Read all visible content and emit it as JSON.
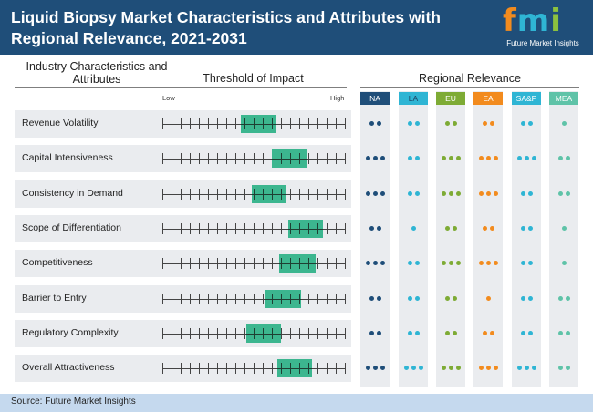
{
  "title": "Liquid Biopsy Market Characteristics and Attributes with Regional Relevance, 2021-2031",
  "logo": {
    "letters": [
      "f",
      "m",
      "i"
    ],
    "letter_colors": [
      "#f28b1e",
      "#2fb5d4",
      "#8cc13f"
    ],
    "subtitle": "Future Market Insights"
  },
  "headers": {
    "characteristics": "Industry Characteristics and Attributes",
    "threshold": "Threshold of Impact",
    "regional": "Regional Relevance",
    "low": "Low",
    "high": "High"
  },
  "regions": [
    {
      "code": "NA",
      "color": "#1f4e79",
      "text_color": "#ffffff"
    },
    {
      "code": "LA",
      "color": "#2fb5d4",
      "text_color": "#1f3f5f"
    },
    {
      "code": "EU",
      "color": "#7eab35",
      "text_color": "#ffffff"
    },
    {
      "code": "EA",
      "color": "#f28b1e",
      "text_color": "#ffffff"
    },
    {
      "code": "SA&P",
      "color": "#2fb5d4",
      "text_color": "#ffffff"
    },
    {
      "code": "MEA",
      "color": "#5fc3a8",
      "text_color": "#ffffff"
    }
  ],
  "rows": [
    {
      "label": "Revenue Volatility",
      "impact_start": 0.43,
      "impact_end": 0.62,
      "relevance": [
        2,
        2,
        2,
        2,
        2,
        1
      ]
    },
    {
      "label": "Capital Intensiveness",
      "impact_start": 0.6,
      "impact_end": 0.79,
      "relevance": [
        3,
        2,
        3,
        3,
        3,
        2
      ]
    },
    {
      "label": "Consistency in Demand",
      "impact_start": 0.49,
      "impact_end": 0.68,
      "relevance": [
        3,
        2,
        3,
        3,
        2,
        2
      ]
    },
    {
      "label": "Scope of Differentiation",
      "impact_start": 0.69,
      "impact_end": 0.88,
      "relevance": [
        2,
        1,
        2,
        2,
        2,
        1
      ]
    },
    {
      "label": "Competitiveness",
      "impact_start": 0.64,
      "impact_end": 0.84,
      "relevance": [
        3,
        2,
        3,
        3,
        2,
        1
      ]
    },
    {
      "label": "Barrier to Entry",
      "impact_start": 0.56,
      "impact_end": 0.76,
      "relevance": [
        2,
        2,
        2,
        1,
        2,
        2
      ]
    },
    {
      "label": "Regulatory Complexity",
      "impact_start": 0.46,
      "impact_end": 0.65,
      "relevance": [
        2,
        2,
        2,
        2,
        2,
        2
      ]
    },
    {
      "label": "Overall Attractiveness",
      "impact_start": 0.63,
      "impact_end": 0.82,
      "relevance": [
        3,
        3,
        3,
        3,
        3,
        2
      ]
    }
  ],
  "footer": "Source: Future Market Insights"
}
